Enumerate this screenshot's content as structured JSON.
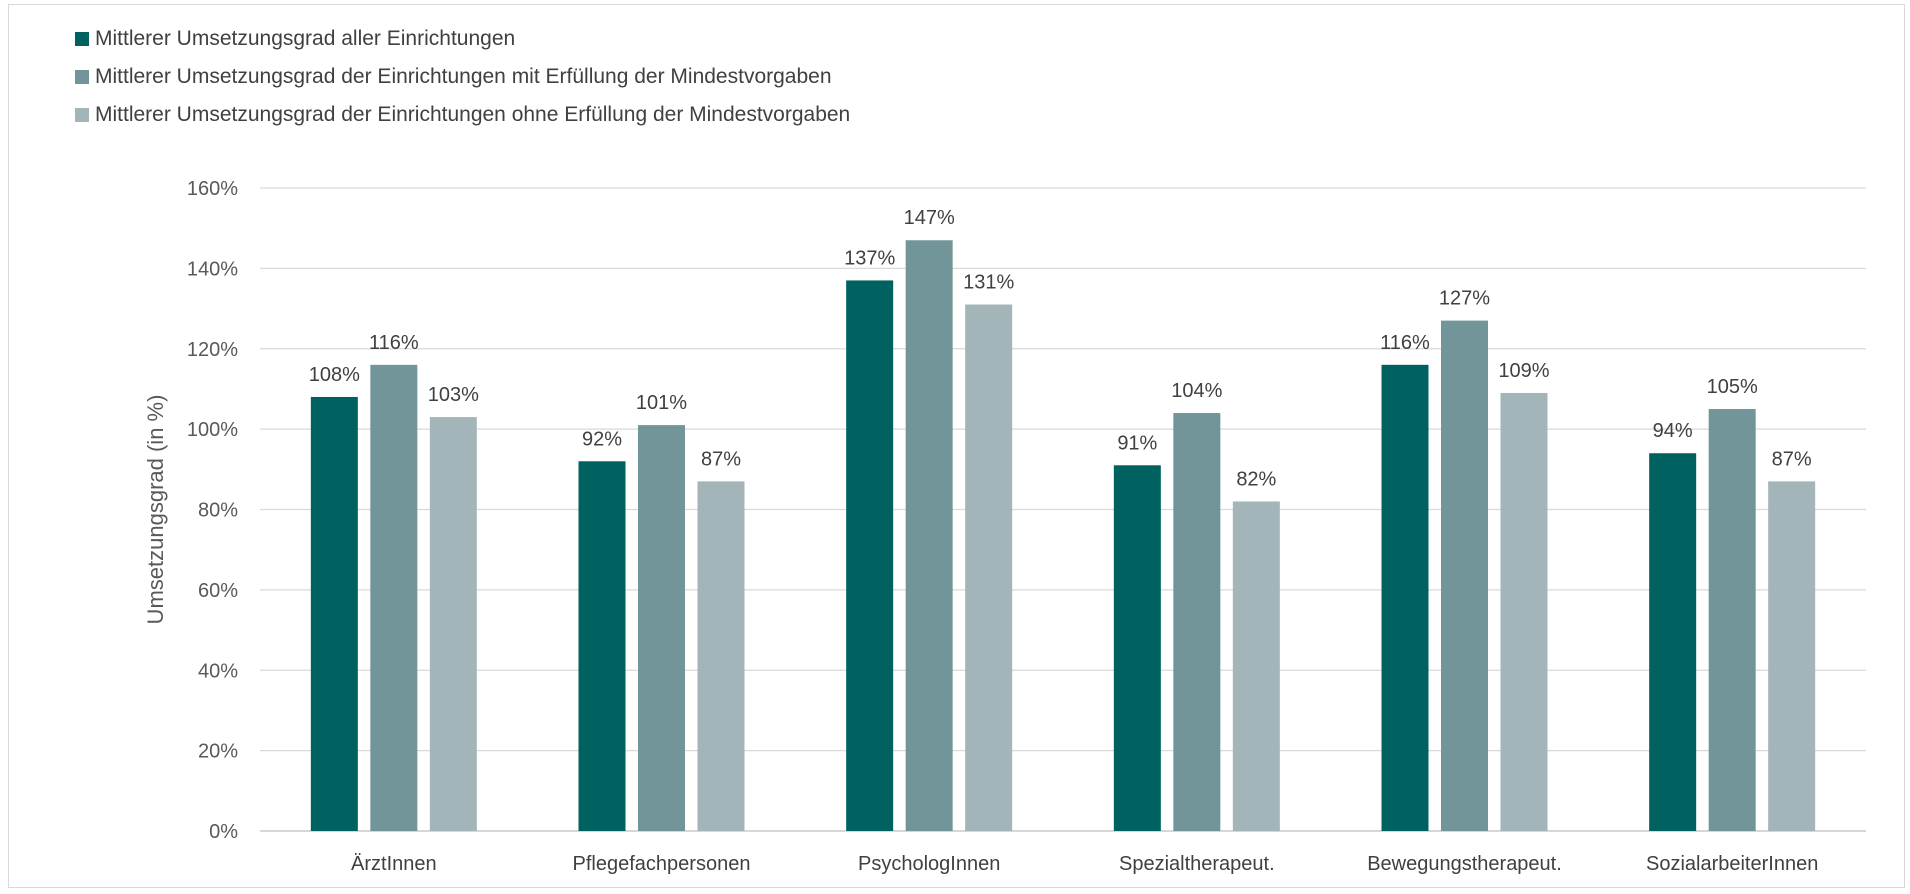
{
  "chart_data": {
    "type": "bar",
    "title": "",
    "xlabel": "",
    "ylabel": "Umsetzungsgrad (in %)",
    "ylim": [
      0,
      160
    ],
    "y_ticks": [
      "0%",
      "20%",
      "40%",
      "60%",
      "80%",
      "100%",
      "120%",
      "140%",
      "160%"
    ],
    "y_tick_values": [
      0,
      20,
      40,
      60,
      80,
      100,
      120,
      140,
      160
    ],
    "grid": true,
    "legend_position": "top-left",
    "categories": [
      "ÄrztInnen",
      "Pflegefachpersonen",
      "PsychologInnen",
      "Spezialtherapeut.",
      "Bewegungstherapeut.",
      "SozialarbeiterInnen"
    ],
    "series": [
      {
        "name": "Mittlerer Umsetzungsgrad aller Einrichtungen",
        "color": "#006161",
        "values": [
          108,
          92,
          137,
          91,
          116,
          94
        ],
        "labels": [
          "108%",
          "92%",
          "137%",
          "91%",
          "116%",
          "94%"
        ]
      },
      {
        "name": "Mittlerer Umsetzungsgrad der Einrichtungen mit Erfüllung der Mindestvorgaben",
        "color": "#719598",
        "values": [
          116,
          101,
          147,
          104,
          127,
          105
        ],
        "labels": [
          "116%",
          "101%",
          "147%",
          "104%",
          "127%",
          "105%"
        ]
      },
      {
        "name": "Mittlerer Umsetzungsgrad der Einrichtungen ohne Erfüllung der Mindestvorgaben",
        "color": "#a3b5b8",
        "values": [
          103,
          87,
          131,
          82,
          109,
          87
        ],
        "labels": [
          "103%",
          "87%",
          "131%",
          "82%",
          "109%",
          "87%"
        ]
      }
    ]
  }
}
